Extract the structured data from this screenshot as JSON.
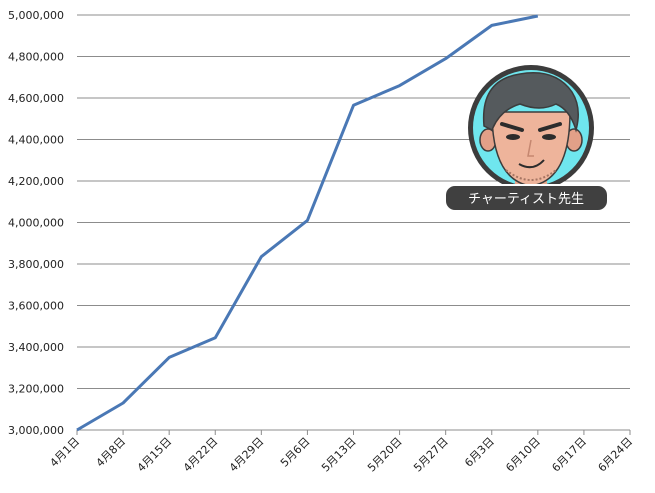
{
  "chart_data": {
    "type": "line",
    "title": "",
    "xlabel": "",
    "ylabel": "",
    "categories": [
      "4月1日",
      "4月8日",
      "4月15日",
      "4月22日",
      "4月29日",
      "5月6日",
      "5月13日",
      "5月20日",
      "5月27日",
      "6月3日",
      "6月10日",
      "6月17日",
      "6月24日"
    ],
    "y_ticks": [
      "3,000,000",
      "3,200,000",
      "3,400,000",
      "3,600,000",
      "3,800,000",
      "4,000,000",
      "4,200,000",
      "4,400,000",
      "4,600,000",
      "4,800,000",
      "5,000,000"
    ],
    "ylim": [
      3000000,
      5000000
    ],
    "grid": true,
    "series": [
      {
        "color": "#4a78b5",
        "values": [
          3000000,
          3130000,
          3350000,
          3445000,
          3835000,
          4010000,
          4565000,
          4660000,
          4790000,
          4950000,
          4995000,
          null,
          null
        ]
      }
    ]
  },
  "badge": {
    "label": "チャーティスト先生",
    "icon": "teacher-avatar-icon"
  }
}
